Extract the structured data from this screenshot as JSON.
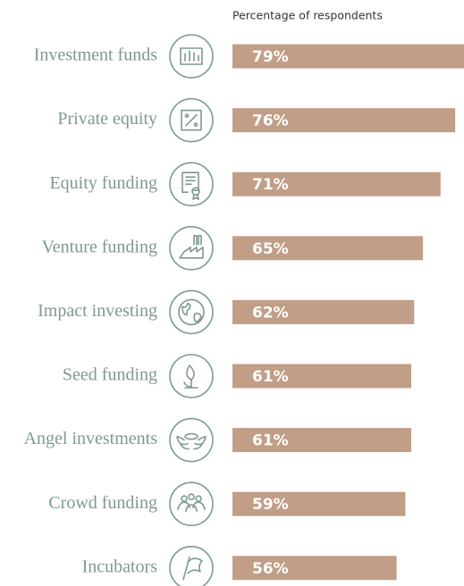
{
  "chart_data": {
    "type": "bar",
    "orientation": "horizontal",
    "subtitle": "Percentage of respondents",
    "categories": [
      "Investment funds",
      "Private equity",
      "Equity funding",
      "Venture funding",
      "Impact investing",
      "Seed funding",
      "Angel investments",
      "Crowd funding",
      "Incubators"
    ],
    "values": [
      79,
      76,
      71,
      65,
      62,
      61,
      61,
      59,
      56
    ],
    "value_labels": [
      "79%",
      "76%",
      "71%",
      "65%",
      "62%",
      "61%",
      "61%",
      "59%",
      "56%"
    ],
    "color": "#c19e88",
    "xlim": [
      0,
      79
    ]
  }
}
